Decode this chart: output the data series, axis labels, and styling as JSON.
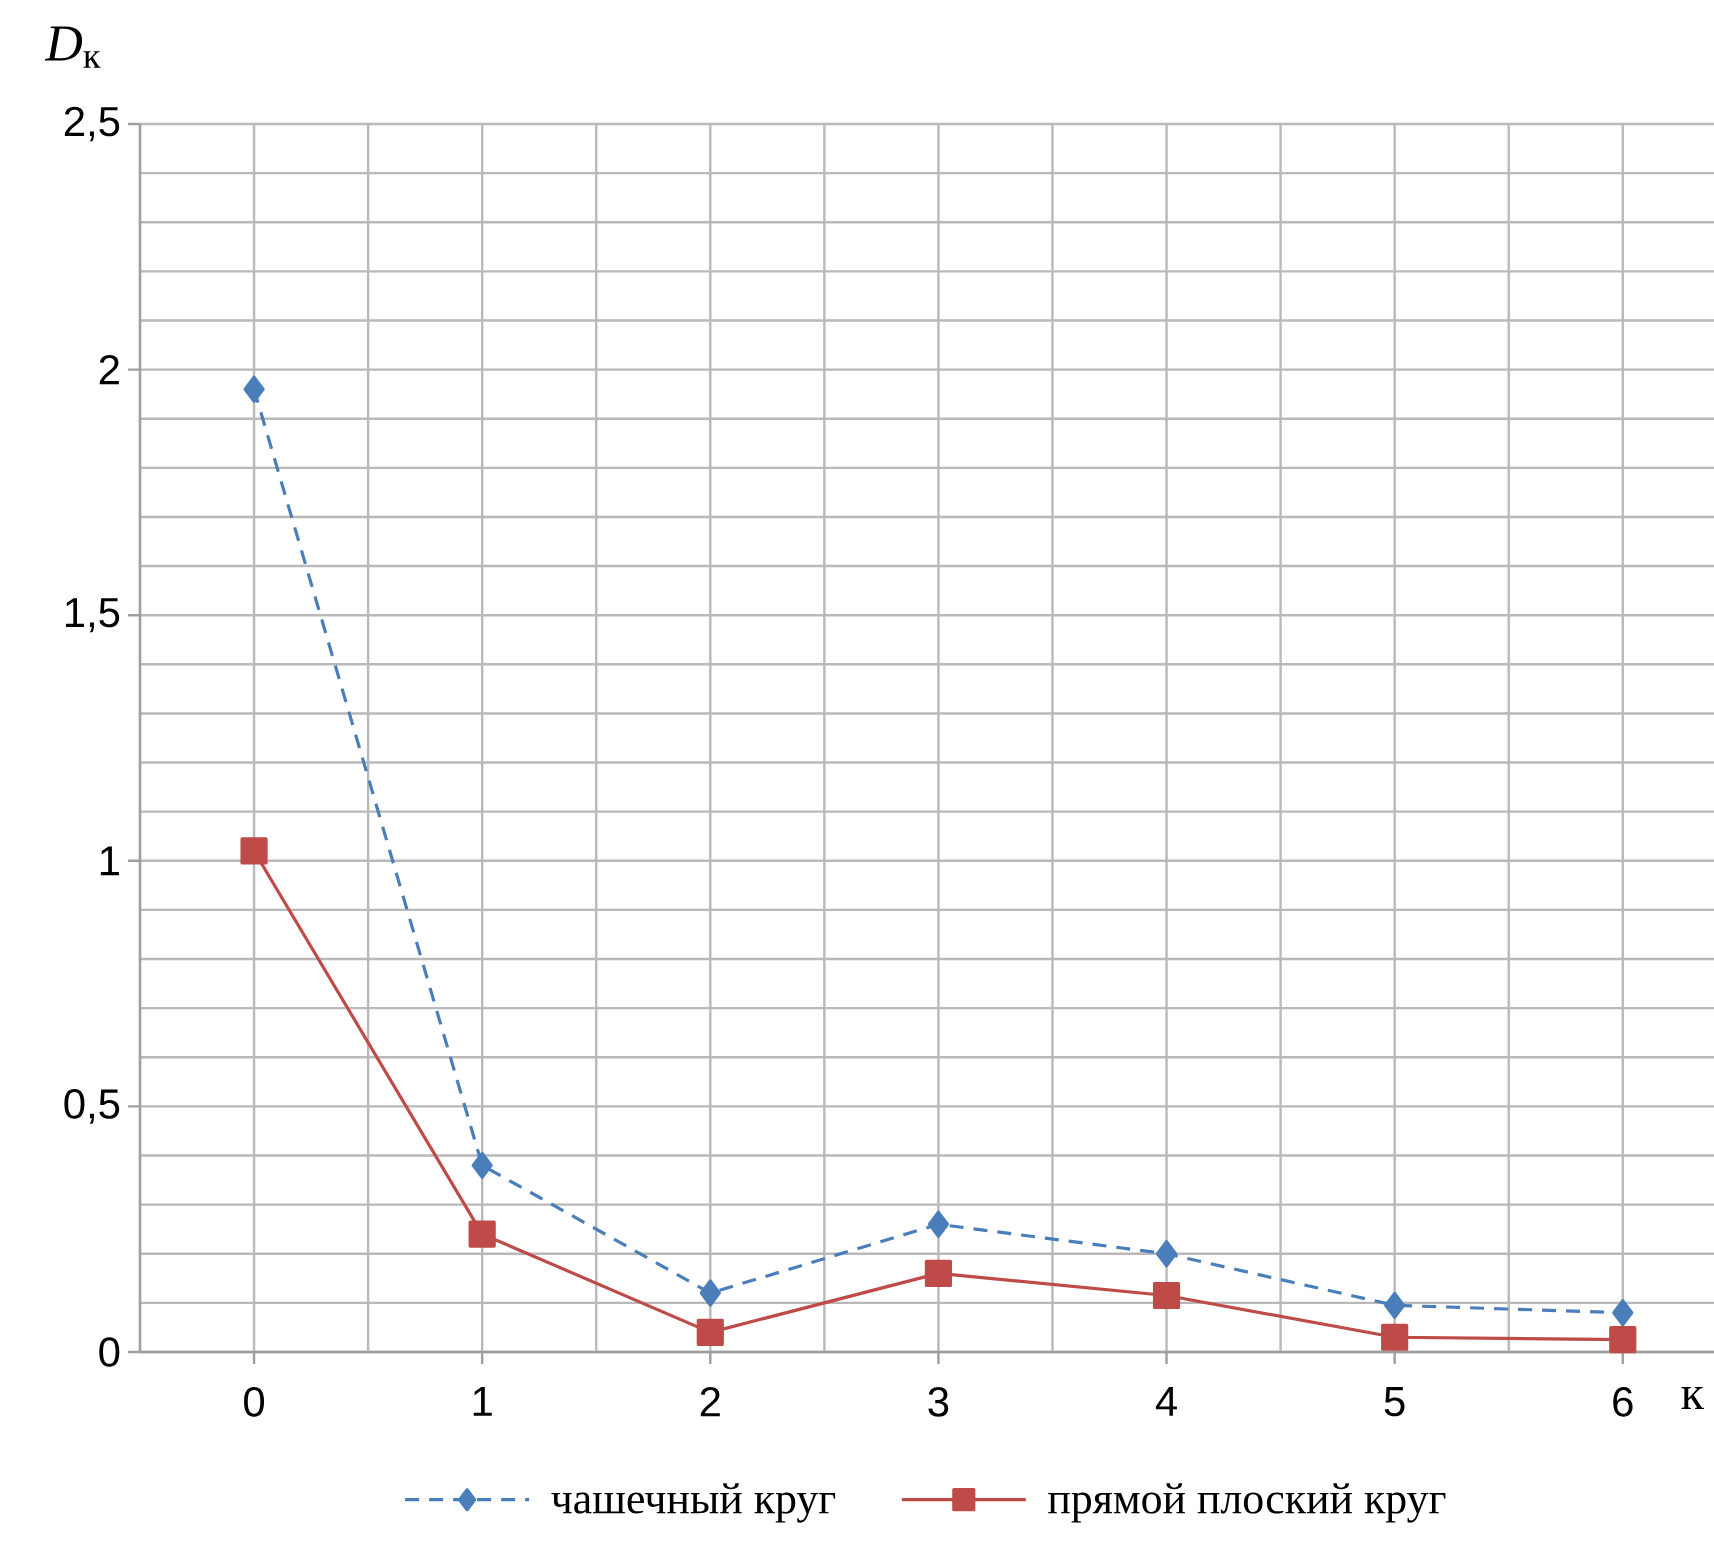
{
  "chart_data": {
    "type": "line",
    "xlabel": "к",
    "ylabel": "*D*$_{к}$",
    "x": [
      0,
      1,
      2,
      3,
      4,
      5,
      6
    ],
    "series": [
      {
        "name": "чашечный круг",
        "color": "#4a7ebb",
        "marker": "diamond",
        "line_style": "dashed",
        "values": [
          1.96,
          0.38,
          0.12,
          0.26,
          0.2,
          0.095,
          0.08
        ]
      },
      {
        "name": "прямой плоский круг",
        "color": "#be4b48",
        "marker": "square",
        "line_style": "solid",
        "values": [
          1.02,
          0.24,
          0.04,
          0.16,
          0.115,
          0.03,
          0.025
        ]
      }
    ],
    "xlim": [
      -0.5,
      6.4
    ],
    "ylim": [
      0,
      2.5
    ],
    "xticks": [
      0,
      1,
      2,
      3,
      4,
      5,
      6
    ],
    "yticks": [
      0,
      {
        "value": 0.5,
        "label": "0,5"
      },
      1,
      {
        "value": 1.5,
        "label": "1,5"
      },
      2,
      {
        "value": 2.5,
        "label": "2,5"
      }
    ],
    "grid": true,
    "legend": "bottom"
  }
}
